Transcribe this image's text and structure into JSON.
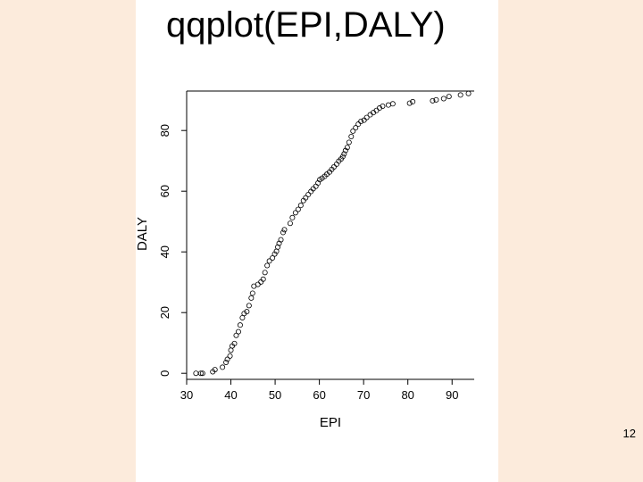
{
  "slide": {
    "title": "qqplot(EPI,DALY)",
    "page_number": "12",
    "background_color": "#fcebdc",
    "panel_color": "#ffffff"
  },
  "chart_data": {
    "type": "scatter",
    "title": "",
    "xlabel": "EPI",
    "ylabel": "DALY",
    "xlim": [
      30,
      95
    ],
    "ylim": [
      -2,
      93
    ],
    "x_ticks": [
      30,
      40,
      50,
      60,
      70,
      80,
      90
    ],
    "y_ticks": [
      0,
      20,
      40,
      60,
      80
    ],
    "grid": false,
    "marker": "open-circle",
    "points": [
      [
        32.1,
        0.0
      ],
      [
        33.2,
        0.0
      ],
      [
        33.6,
        0.0
      ],
      [
        35.9,
        0.5
      ],
      [
        36.4,
        1.2
      ],
      [
        38.1,
        2.0
      ],
      [
        38.9,
        3.6
      ],
      [
        39.2,
        4.6
      ],
      [
        39.8,
        5.7
      ],
      [
        40.0,
        7.6
      ],
      [
        40.3,
        9.0
      ],
      [
        40.8,
        9.8
      ],
      [
        41.2,
        12.5
      ],
      [
        41.7,
        13.7
      ],
      [
        42.1,
        15.9
      ],
      [
        42.6,
        18.3
      ],
      [
        43.0,
        19.7
      ],
      [
        43.6,
        20.3
      ],
      [
        44.1,
        22.3
      ],
      [
        44.6,
        24.8
      ],
      [
        44.9,
        26.4
      ],
      [
        45.2,
        28.7
      ],
      [
        46.1,
        29.3
      ],
      [
        46.8,
        30.1
      ],
      [
        47.3,
        31.0
      ],
      [
        47.7,
        33.2
      ],
      [
        48.2,
        35.5
      ],
      [
        48.7,
        37.0
      ],
      [
        49.4,
        38.0
      ],
      [
        49.9,
        39.3
      ],
      [
        50.3,
        40.2
      ],
      [
        50.6,
        41.6
      ],
      [
        50.9,
        42.8
      ],
      [
        51.3,
        44.0
      ],
      [
        51.8,
        46.4
      ],
      [
        52.1,
        47.3
      ],
      [
        53.4,
        49.4
      ],
      [
        53.9,
        51.3
      ],
      [
        54.6,
        52.9
      ],
      [
        55.2,
        54.0
      ],
      [
        55.8,
        55.3
      ],
      [
        56.4,
        56.9
      ],
      [
        56.9,
        57.8
      ],
      [
        57.5,
        58.9
      ],
      [
        58.1,
        59.9
      ],
      [
        58.6,
        60.8
      ],
      [
        59.2,
        61.6
      ],
      [
        59.7,
        62.7
      ],
      [
        60.1,
        63.8
      ],
      [
        60.6,
        64.3
      ],
      [
        61.2,
        64.9
      ],
      [
        61.7,
        65.6
      ],
      [
        62.3,
        66.3
      ],
      [
        62.8,
        67.2
      ],
      [
        63.3,
        68.0
      ],
      [
        63.9,
        68.9
      ],
      [
        64.4,
        69.9
      ],
      [
        64.9,
        70.6
      ],
      [
        65.3,
        71.4
      ],
      [
        65.6,
        72.3
      ],
      [
        65.9,
        73.4
      ],
      [
        66.3,
        74.4
      ],
      [
        66.7,
        76.1
      ],
      [
        67.2,
        78.0
      ],
      [
        67.6,
        79.8
      ],
      [
        68.2,
        80.9
      ],
      [
        68.8,
        82.1
      ],
      [
        69.4,
        83.0
      ],
      [
        70.1,
        83.4
      ],
      [
        70.7,
        84.3
      ],
      [
        71.5,
        85.2
      ],
      [
        72.2,
        85.9
      ],
      [
        72.9,
        86.6
      ],
      [
        73.6,
        87.4
      ],
      [
        74.3,
        88.0
      ],
      [
        75.6,
        88.4
      ],
      [
        76.6,
        88.8
      ],
      [
        80.4,
        89.0
      ],
      [
        81.1,
        89.5
      ],
      [
        85.6,
        89.8
      ],
      [
        86.4,
        90.1
      ],
      [
        88.1,
        90.5
      ],
      [
        89.3,
        91.2
      ],
      [
        91.9,
        91.7
      ],
      [
        93.7,
        92.2
      ]
    ]
  }
}
